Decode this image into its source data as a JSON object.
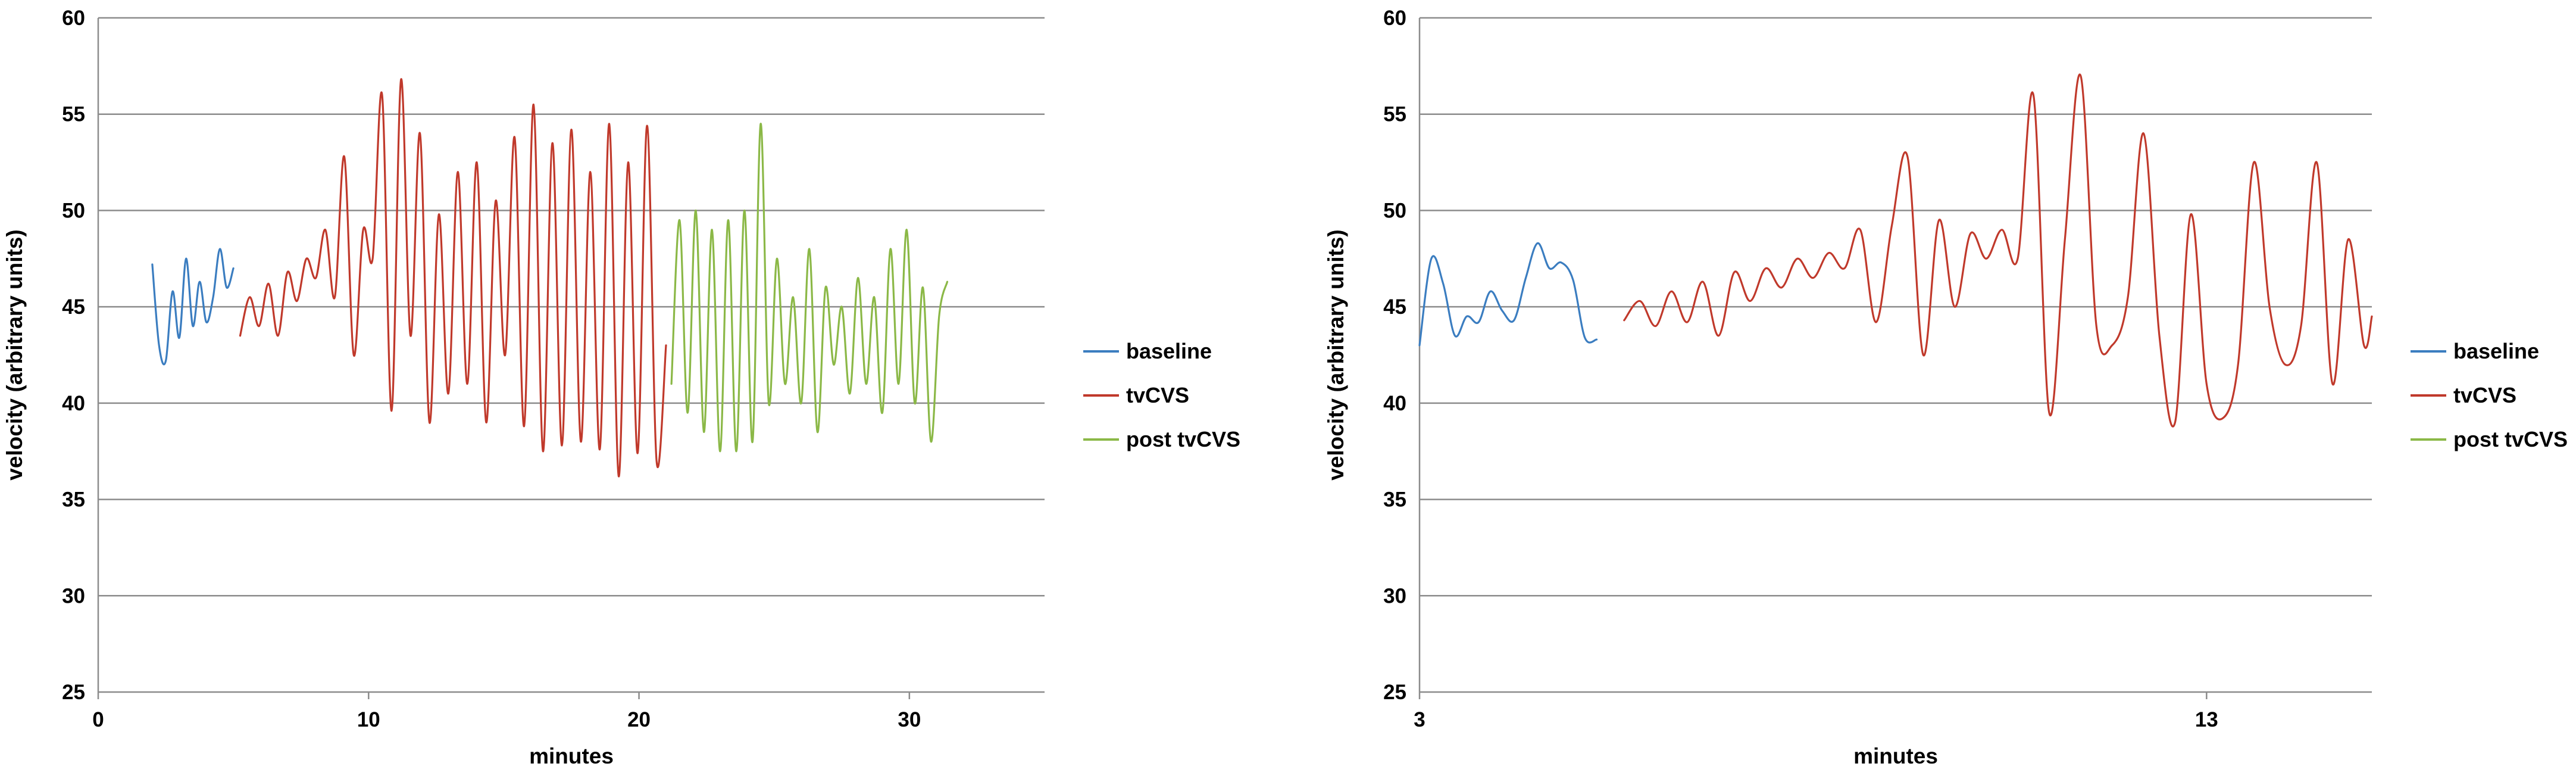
{
  "colors": {
    "baseline": "#3b7dc0",
    "tvCVS": "#c0392b",
    "post_tvCVS": "#8bb847",
    "grid": "#8c8c8c"
  },
  "chart_data": [
    {
      "type": "line",
      "xlabel": "minutes",
      "ylabel": "velocity (arbitrary units)",
      "xlim": [
        0,
        35
      ],
      "ylim": [
        25,
        60
      ],
      "xticks": [
        0,
        10,
        20,
        30
      ],
      "yticks": [
        25,
        30,
        35,
        40,
        45,
        50,
        55,
        60
      ],
      "grid": "horizontal",
      "legend": "right",
      "series": [
        {
          "name": "baseline",
          "x": [
            2.0,
            2.25,
            2.5,
            2.75,
            3.0,
            3.25,
            3.5,
            3.75,
            4.0,
            4.25,
            4.5,
            4.75,
            5.0
          ],
          "y": [
            47.2,
            43.0,
            42.2,
            45.8,
            43.4,
            47.5,
            44.0,
            46.3,
            44.2,
            45.5,
            48.0,
            46.0,
            47.0
          ]
        },
        {
          "name": "tvCVS",
          "x": [
            5.25,
            5.6,
            5.95,
            6.3,
            6.65,
            7.0,
            7.35,
            7.7,
            8.05,
            8.4,
            8.75,
            9.1,
            9.45,
            9.8,
            10.15,
            10.5,
            10.85,
            11.2,
            11.55,
            11.9,
            12.25,
            12.6,
            12.95,
            13.3,
            13.65,
            14.0,
            14.35,
            14.7,
            15.05,
            15.4,
            15.75,
            16.1,
            16.45,
            16.8,
            17.15,
            17.5,
            17.85,
            18.2,
            18.55,
            18.9,
            19.25,
            19.6,
            19.95,
            20.3,
            20.65,
            21.0
          ],
          "y": [
            43.5,
            45.5,
            44.0,
            46.2,
            43.5,
            46.8,
            45.3,
            47.5,
            46.5,
            49.0,
            45.5,
            52.8,
            42.5,
            49.0,
            47.5,
            56.0,
            39.6,
            56.8,
            43.5,
            54.0,
            39.0,
            49.8,
            40.5,
            52.0,
            41.0,
            52.5,
            39.0,
            50.5,
            42.5,
            53.8,
            38.8,
            55.5,
            37.5,
            53.5,
            37.8,
            54.2,
            38.0,
            52.0,
            37.6,
            54.5,
            36.2,
            52.5,
            37.4,
            54.4,
            37.0,
            43.0
          ]
        },
        {
          "name": "post tvCVS",
          "x": [
            21.2,
            21.5,
            21.8,
            22.1,
            22.4,
            22.7,
            23.0,
            23.3,
            23.6,
            23.9,
            24.2,
            24.5,
            24.8,
            25.1,
            25.4,
            25.7,
            26.0,
            26.3,
            26.6,
            26.9,
            27.2,
            27.5,
            27.8,
            28.1,
            28.4,
            28.7,
            29.0,
            29.3,
            29.6,
            29.9,
            30.2,
            30.5,
            30.8,
            31.1,
            31.4
          ],
          "y": [
            41.0,
            49.5,
            39.5,
            50.0,
            38.5,
            49.0,
            37.5,
            49.5,
            37.5,
            50.0,
            38.0,
            54.5,
            40.0,
            47.5,
            41.0,
            45.5,
            40.0,
            48.0,
            38.5,
            46.0,
            42.0,
            45.0,
            40.5,
            46.5,
            41.0,
            45.5,
            39.5,
            48.0,
            41.0,
            49.0,
            40.0,
            46.0,
            38.0,
            44.5,
            46.3
          ]
        }
      ]
    },
    {
      "type": "line",
      "xlabel": "minutes",
      "ylabel": "velocity (arbitrary units)",
      "xlim": [
        3,
        15.1
      ],
      "ylim": [
        25,
        60
      ],
      "xticks": [
        3,
        13
      ],
      "yticks": [
        25,
        30,
        35,
        40,
        45,
        50,
        55,
        60
      ],
      "grid": "horizontal",
      "legend": "right",
      "series": [
        {
          "name": "baseline",
          "x": [
            3.0,
            3.15,
            3.3,
            3.45,
            3.6,
            3.75,
            3.9,
            4.05,
            4.2,
            4.35,
            4.5,
            4.65,
            4.8,
            4.95,
            5.1,
            5.25
          ],
          "y": [
            43.0,
            47.5,
            46.2,
            43.5,
            44.5,
            44.2,
            45.8,
            44.8,
            44.3,
            46.5,
            48.3,
            47.0,
            47.3,
            46.4,
            43.4,
            43.3
          ]
        },
        {
          "name": "tvCVS",
          "x": [
            5.6,
            5.8,
            6.0,
            6.2,
            6.4,
            6.6,
            6.8,
            7.0,
            7.2,
            7.4,
            7.6,
            7.8,
            8.0,
            8.2,
            8.4,
            8.6,
            8.8,
            9.0,
            9.2,
            9.4,
            9.6,
            9.8,
            10.0,
            10.2,
            10.4,
            10.6,
            10.8,
            11.0,
            11.2,
            11.4,
            11.6,
            11.8,
            12.0,
            12.2,
            12.4,
            12.6,
            12.8,
            13.0,
            13.2,
            13.4,
            13.6,
            13.8,
            14.0,
            14.2,
            14.4,
            14.6,
            14.8,
            15.0,
            15.1
          ],
          "y": [
            44.3,
            45.3,
            44.0,
            45.8,
            44.2,
            46.3,
            43.5,
            46.8,
            45.3,
            47.0,
            46.0,
            47.5,
            46.5,
            47.8,
            47.0,
            49.0,
            44.2,
            49.2,
            52.8,
            42.5,
            49.5,
            45.0,
            48.8,
            47.5,
            49.0,
            47.5,
            56.0,
            39.5,
            48.5,
            57.0,
            44.0,
            43.0,
            45.5,
            54.0,
            43.5,
            39.0,
            49.8,
            41.0,
            39.2,
            42.0,
            52.5,
            45.0,
            42.0,
            44.0,
            52.5,
            41.0,
            48.5,
            43.0,
            44.5
          ]
        }
      ]
    }
  ]
}
